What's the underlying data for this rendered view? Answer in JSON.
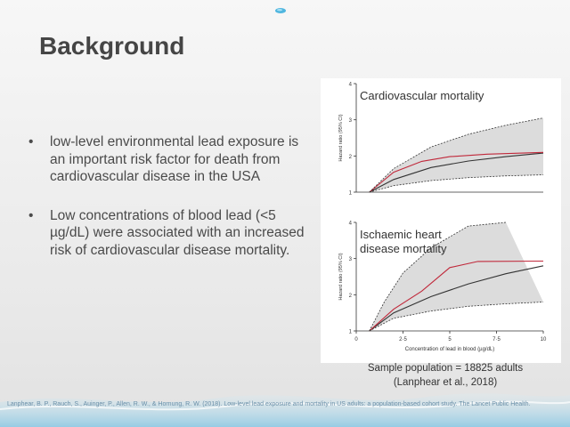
{
  "slide": {
    "title": "Background",
    "bullets": [
      "low-level environmental lead exposure is an important risk factor for death from cardiovascular disease in the USA",
      "Low concentrations of blood lead (<5 µg/dL) were associated with an increased risk of cardiovascular disease mortality."
    ],
    "bullet_marker": "•",
    "caption_line1": "Sample population = 18825 adults",
    "caption_line2": "(Lanphear et al., 2018)",
    "footer": "Lanphear, B. P., Rauch, S., Auinger, P., Allen, R. W., & Hornung, R. W. (2018). Low-level lead exposure and mortality in US adults: a population-based cohort study. The Lancet Public Health."
  },
  "chart_data": [
    {
      "type": "line",
      "title": "Cardiovascular mortality",
      "xlabel": "",
      "ylabel": "Hazard ratio (95% CI)",
      "xlim": [
        0,
        10
      ],
      "ylim": [
        1,
        4
      ],
      "yticks": [
        "1",
        "2",
        "3",
        "4"
      ],
      "series": [
        {
          "x": [
            0.7,
            2,
            4,
            6,
            8,
            10
          ],
          "values": [
            1.0,
            1.35,
            1.68,
            1.86,
            1.98,
            2.08
          ],
          "style": "solid",
          "color": "#333333"
        },
        {
          "x": [
            0.7,
            2,
            3.5,
            5,
            7,
            10
          ],
          "values": [
            1.0,
            1.55,
            1.85,
            1.98,
            2.05,
            2.1
          ],
          "style": "solid",
          "color": "#c0283a"
        },
        {
          "x": [
            0.7,
            2,
            4,
            6,
            8,
            10
          ],
          "values": [
            1.0,
            1.18,
            1.32,
            1.4,
            1.45,
            1.48
          ],
          "style": "dashed",
          "color": "#333333"
        },
        {
          "x": [
            0.7,
            2,
            4,
            6,
            8,
            10
          ],
          "values": [
            1.0,
            1.65,
            2.25,
            2.6,
            2.85,
            3.05
          ],
          "style": "dashed",
          "color": "#333333"
        }
      ]
    },
    {
      "type": "line",
      "title": "Ischaemic heart disease mortality",
      "xlabel": "Concentration of lead in blood (µg/dL)",
      "ylabel": "Hazard ratio (95% CI)",
      "xlim": [
        0,
        10
      ],
      "ylim": [
        1,
        4
      ],
      "xticks": [
        "0",
        "2·5",
        "5",
        "7·5",
        "10"
      ],
      "yticks": [
        "1",
        "2",
        "3",
        "4"
      ],
      "series": [
        {
          "x": [
            0.7,
            2,
            4,
            6,
            8,
            10
          ],
          "values": [
            1.0,
            1.5,
            1.95,
            2.3,
            2.58,
            2.8
          ],
          "style": "solid",
          "color": "#333333"
        },
        {
          "x": [
            0.7,
            2,
            3.5,
            5,
            6.5,
            10
          ],
          "values": [
            1.0,
            1.6,
            2.1,
            2.75,
            2.92,
            2.93
          ],
          "style": "solid",
          "color": "#c0283a"
        },
        {
          "x": [
            0.7,
            2,
            4,
            6,
            8,
            10
          ],
          "values": [
            1.0,
            1.35,
            1.55,
            1.68,
            1.75,
            1.8
          ],
          "style": "dashed",
          "color": "#333333"
        },
        {
          "x": [
            0.7,
            1.5,
            2.5,
            4,
            6,
            8
          ],
          "values": [
            1.0,
            1.8,
            2.6,
            3.3,
            3.9,
            4.0
          ],
          "style": "dashed",
          "color": "#333333"
        }
      ]
    }
  ]
}
